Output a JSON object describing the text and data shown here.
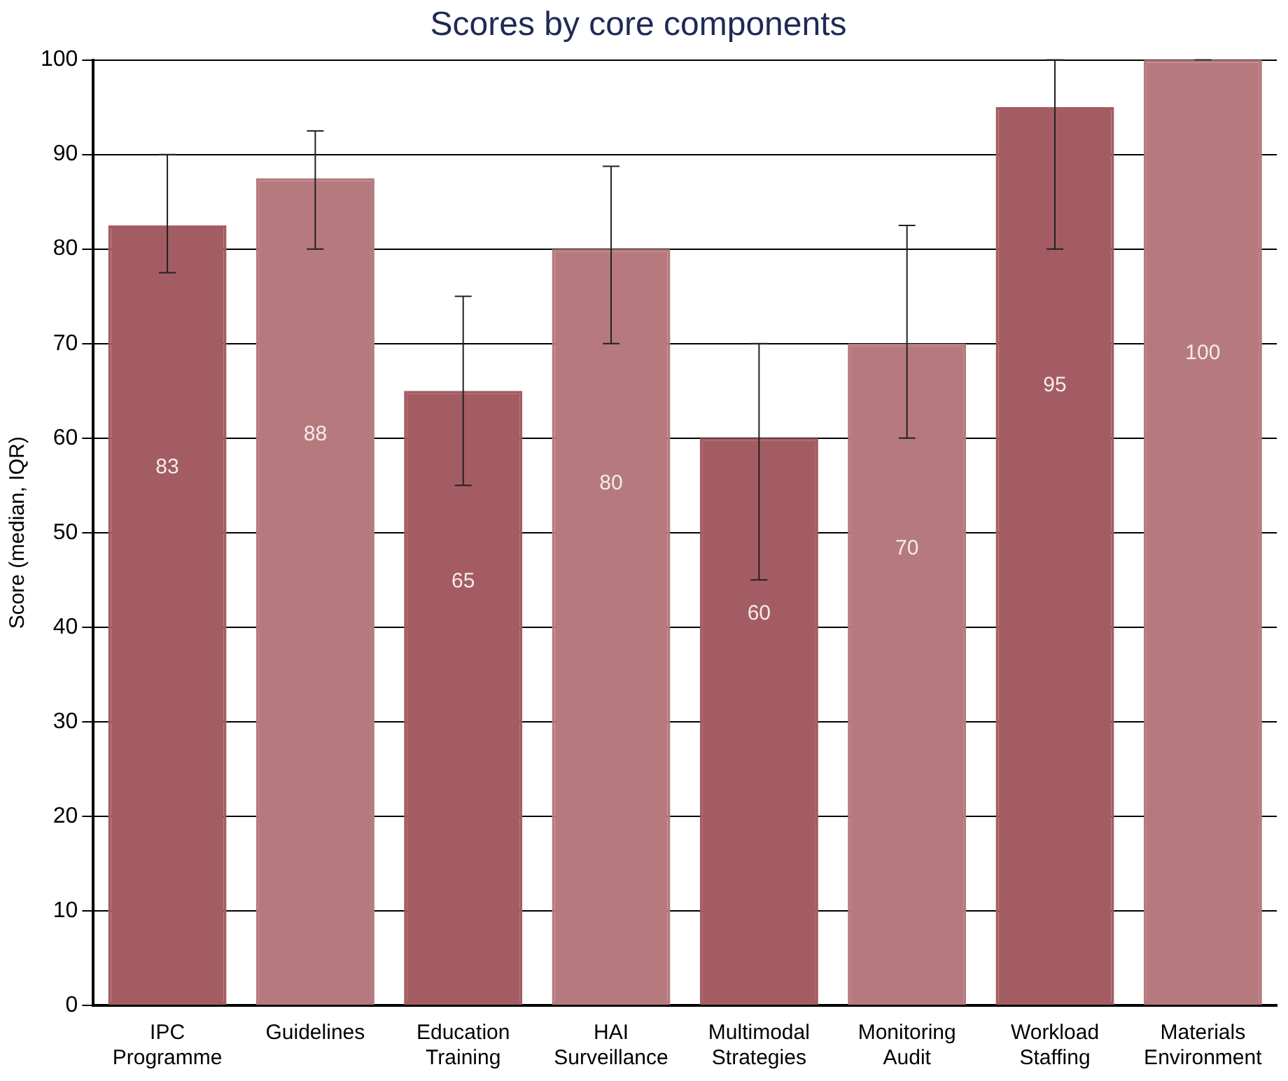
{
  "chart_data": {
    "type": "bar",
    "title": "Scores by core components",
    "ylabel": "Score (median, IQR)",
    "categories": [
      "IPC Programme",
      "Guidelines",
      "Education Training",
      "HAI Surveillance",
      "Multimodal Strategies",
      "Monitoring Audit",
      "Workload Staffing",
      "Materials Environment"
    ],
    "values": [
      82.5,
      87.5,
      65,
      80,
      60,
      70,
      95,
      100
    ],
    "colors": [
      "#a35d62",
      "#b67a7e",
      "#a35d62",
      "#b67a7e",
      "#a35d62",
      "#b67a7e",
      "#a35d62",
      "#b67a7e"
    ],
    "errors": [
      [
        77.5,
        90
      ],
      [
        80,
        92.5
      ],
      [
        55,
        75
      ],
      [
        70,
        88.75
      ],
      [
        45,
        70
      ],
      [
        60,
        82.5
      ],
      [
        80,
        100
      ],
      [
        100,
        100
      ]
    ],
    "value_labels": [
      "83",
      "88",
      "65",
      "80",
      "60",
      "70",
      "95",
      "100"
    ],
    "ylim": [
      0,
      100
    ],
    "yticks": [
      0,
      10,
      20,
      30,
      40,
      50,
      60,
      70,
      80,
      90,
      100
    ],
    "grid": "y",
    "legend": false
  }
}
